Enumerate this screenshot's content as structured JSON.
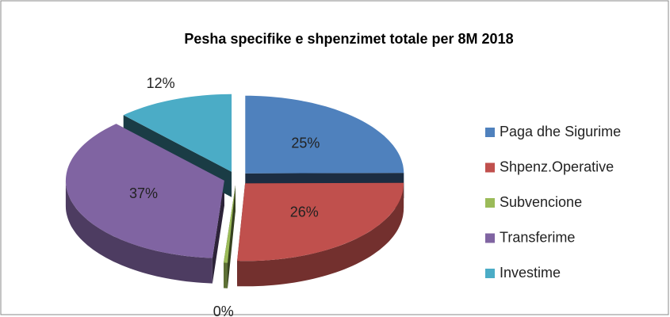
{
  "chart_data": {
    "type": "pie3d",
    "title": "Pesha specifike e shpenzimet totale per 8M 2018",
    "categories": [
      "Paga dhe Sigurime",
      "Shpenz.Operative",
      "Subvencione",
      "Transferime",
      "Investime"
    ],
    "values": [
      25,
      26,
      0.4,
      37,
      12
    ],
    "value_labels": [
      "25%",
      "26%",
      "0%",
      "37%",
      "12%"
    ],
    "colors": [
      "#4f81bd",
      "#c0504d",
      "#9bbb59",
      "#8064a2",
      "#4bacc6"
    ],
    "legend": "right"
  }
}
